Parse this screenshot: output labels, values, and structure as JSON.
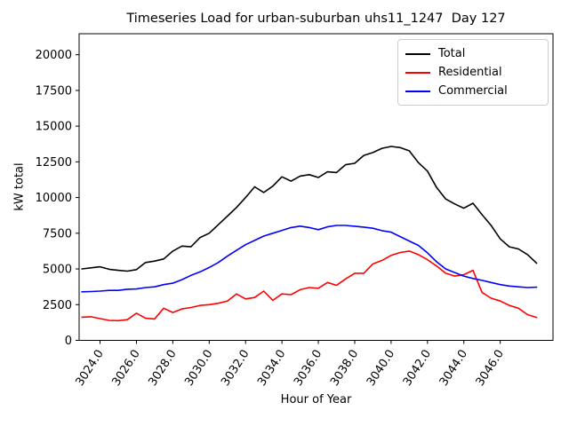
{
  "title": "Timeseries Load for urban-suburban uhs11_1247  Day 127",
  "chart_data": {
    "type": "line",
    "title": "Timeseries Load for urban-suburban uhs11_1247  Day 127",
    "xlabel": "Hour of Year",
    "ylabel": "kW total",
    "xlim": [
      3022.85,
      3048.9
    ],
    "ylim": [
      0,
      21470
    ],
    "grid": false,
    "legend_position": "upper right",
    "x_ticks": [
      3024,
      3026,
      3028,
      3030,
      3032,
      3034,
      3036,
      3038,
      3040,
      3042,
      3044,
      3046
    ],
    "x_tick_labels": [
      "3024.0",
      "3026.0",
      "3028.0",
      "3030.0",
      "3032.0",
      "3034.0",
      "3036.0",
      "3038.0",
      "3040.0",
      "3042.0",
      "3044.0",
      "3046.0"
    ],
    "y_ticks": [
      0,
      2500,
      5000,
      7500,
      10000,
      12500,
      15000,
      17500,
      20000
    ],
    "y_tick_labels": [
      "0",
      "2500",
      "5000",
      "7500",
      "10000",
      "12500",
      "15000",
      "17500",
      "20000"
    ],
    "x": [
      3023.0,
      3023.5,
      3024.0,
      3024.5,
      3025.0,
      3025.5,
      3026.0,
      3026.5,
      3027.0,
      3027.5,
      3028.0,
      3028.5,
      3029.0,
      3029.5,
      3030.0,
      3030.5,
      3031.0,
      3031.5,
      3032.0,
      3032.5,
      3033.0,
      3033.5,
      3034.0,
      3034.5,
      3035.0,
      3035.5,
      3036.0,
      3036.5,
      3037.0,
      3037.5,
      3038.0,
      3038.5,
      3039.0,
      3039.5,
      3040.0,
      3040.5,
      3041.0,
      3041.5,
      3042.0,
      3042.5,
      3043.0,
      3043.5,
      3044.0,
      3044.5,
      3045.0,
      3045.5,
      3046.0,
      3046.5,
      3047.0,
      3047.5,
      3048.0
    ],
    "series": [
      {
        "name": "Total",
        "color": "#000000",
        "values": [
          5000,
          5080,
          5150,
          4980,
          4900,
          4850,
          4950,
          5450,
          5550,
          5700,
          6250,
          6600,
          6550,
          7200,
          7500,
          8100,
          8700,
          9300,
          10000,
          10750,
          10350,
          10800,
          11450,
          11150,
          11500,
          11600,
          11400,
          11800,
          11750,
          12300,
          12400,
          12950,
          13150,
          13450,
          13580,
          13500,
          13270,
          12450,
          11850,
          10700,
          9900,
          9550,
          9250,
          9600,
          8800,
          8050,
          7100,
          6550,
          6400,
          6000,
          5400
        ]
      },
      {
        "name": "Residential",
        "color": "#ff0000",
        "values": [
          1620,
          1650,
          1520,
          1400,
          1380,
          1450,
          1900,
          1550,
          1500,
          2250,
          1950,
          2200,
          2300,
          2450,
          2500,
          2600,
          2750,
          3250,
          2900,
          3000,
          3450,
          2800,
          3250,
          3200,
          3550,
          3700,
          3650,
          4050,
          3850,
          4300,
          4700,
          4700,
          5350,
          5600,
          5950,
          6150,
          6250,
          6000,
          5650,
          5200,
          4700,
          4500,
          4600,
          4900,
          3350,
          2950,
          2750,
          2450,
          2250,
          1800,
          1600
        ]
      },
      {
        "name": "Commercial",
        "color": "#0000ff",
        "values": [
          3400,
          3420,
          3450,
          3500,
          3500,
          3580,
          3600,
          3700,
          3750,
          3900,
          4000,
          4250,
          4550,
          4800,
          5100,
          5450,
          5900,
          6300,
          6700,
          7000,
          7300,
          7500,
          7700,
          7900,
          8000,
          7900,
          7750,
          7950,
          8050,
          8050,
          7990,
          7930,
          7850,
          7680,
          7575,
          7265,
          6955,
          6650,
          6130,
          5500,
          5000,
          4750,
          4500,
          4330,
          4200,
          4050,
          3900,
          3800,
          3750,
          3700,
          3720
        ]
      }
    ]
  }
}
